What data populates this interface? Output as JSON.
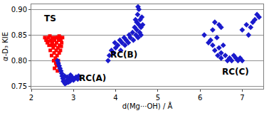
{
  "chart_data": {
    "type": "scatter",
    "x_label": "d(Mg···OH) / Å",
    "y_label": "α-D₃ KIE",
    "xlim": [
      2,
      7.5
    ],
    "xticks": [
      2,
      3,
      4,
      5,
      6,
      7
    ],
    "ylim": [
      0.745,
      0.91
    ],
    "yticks": [
      {
        "value": 0.75,
        "label": "0.75"
      },
      {
        "value": 0.8,
        "label": "0.80"
      },
      {
        "value": 0.85,
        "label": "0.85"
      },
      {
        "value": 0.9,
        "label": "0.90"
      }
    ],
    "grid": true,
    "annotations": [
      {
        "text": "TS",
        "x": 2.45,
        "y": 0.882
      },
      {
        "text": "RC(A)",
        "x": 3.45,
        "y": 0.766
      },
      {
        "text": "RC(B)",
        "x": 4.2,
        "y": 0.812
      },
      {
        "text": "RC(C)",
        "x": 6.85,
        "y": 0.778
      }
    ],
    "series": [
      {
        "color": "#ff0000",
        "marker": "square",
        "x": [
          2.32,
          2.35,
          2.38,
          2.4,
          2.42,
          2.44,
          2.45,
          2.47,
          2.48,
          2.5,
          2.5,
          2.52,
          2.53,
          2.54,
          2.55,
          2.56,
          2.57,
          2.58,
          2.59,
          2.6,
          2.6,
          2.61,
          2.62,
          2.63,
          2.64,
          2.65,
          2.66,
          2.67,
          2.68,
          2.69,
          2.7,
          2.72,
          2.74,
          2.55,
          2.58,
          2.62,
          2.48,
          2.43,
          2.66,
          2.71
        ],
        "values": [
          0.845,
          0.84,
          0.835,
          0.845,
          0.83,
          0.848,
          0.82,
          0.84,
          0.81,
          0.835,
          0.845,
          0.825,
          0.8,
          0.815,
          0.84,
          0.83,
          0.805,
          0.845,
          0.82,
          0.79,
          0.835,
          0.81,
          0.845,
          0.825,
          0.8,
          0.84,
          0.815,
          0.83,
          0.845,
          0.82,
          0.84,
          0.835,
          0.845,
          0.785,
          0.795,
          0.78,
          0.83,
          0.838,
          0.848,
          0.828
        ]
      },
      {
        "color": "#1a1acc",
        "marker": "diamond",
        "x": [
          2.62,
          2.64,
          2.66,
          2.68,
          2.7,
          2.72,
          2.73,
          2.75,
          2.76,
          2.78,
          2.8,
          2.82,
          2.84,
          2.86,
          2.88,
          2.9,
          2.92,
          2.95,
          2.98,
          3.0,
          3.03,
          3.06,
          3.1,
          2.79,
          2.85,
          2.93,
          3.12,
          3.82,
          3.85,
          3.9,
          3.95,
          3.98,
          4.0,
          4.05,
          4.1,
          4.12,
          4.15,
          4.2,
          4.22,
          4.25,
          4.3,
          4.32,
          4.35,
          4.4,
          4.42,
          4.45,
          4.48,
          4.5,
          4.5,
          4.52,
          4.53,
          4.55,
          4.55,
          4.57,
          4.58,
          4.6,
          4.6,
          4.62,
          4.64,
          4.53,
          4.47,
          6.1,
          6.2,
          6.25,
          6.3,
          6.35,
          6.4,
          6.42,
          6.45,
          6.5,
          6.5,
          6.55,
          6.6,
          6.65,
          6.7,
          6.75,
          6.8,
          6.85,
          6.9,
          6.95,
          7.0,
          6.3,
          6.35,
          6.45,
          6.5,
          7.0,
          7.1,
          7.2,
          7.25,
          7.3,
          7.35,
          7.4,
          7.15
        ],
        "values": [
          0.8,
          0.795,
          0.79,
          0.785,
          0.78,
          0.775,
          0.77,
          0.765,
          0.76,
          0.758,
          0.755,
          0.76,
          0.757,
          0.762,
          0.758,
          0.765,
          0.76,
          0.763,
          0.767,
          0.762,
          0.765,
          0.768,
          0.764,
          0.77,
          0.768,
          0.772,
          0.77,
          0.8,
          0.81,
          0.82,
          0.815,
          0.835,
          0.825,
          0.83,
          0.84,
          0.82,
          0.835,
          0.845,
          0.83,
          0.84,
          0.835,
          0.85,
          0.845,
          0.855,
          0.84,
          0.865,
          0.85,
          0.875,
          0.86,
          0.89,
          0.845,
          0.9,
          0.87,
          0.855,
          0.88,
          0.865,
          0.85,
          0.885,
          0.87,
          0.905,
          0.88,
          0.85,
          0.835,
          0.84,
          0.83,
          0.82,
          0.845,
          0.81,
          0.825,
          0.815,
          0.805,
          0.83,
          0.81,
          0.8,
          0.805,
          0.8,
          0.81,
          0.805,
          0.8,
          0.805,
          0.8,
          0.86,
          0.875,
          0.87,
          0.865,
          0.86,
          0.87,
          0.865,
          0.875,
          0.88,
          0.89,
          0.885,
          0.85
        ]
      }
    ]
  }
}
